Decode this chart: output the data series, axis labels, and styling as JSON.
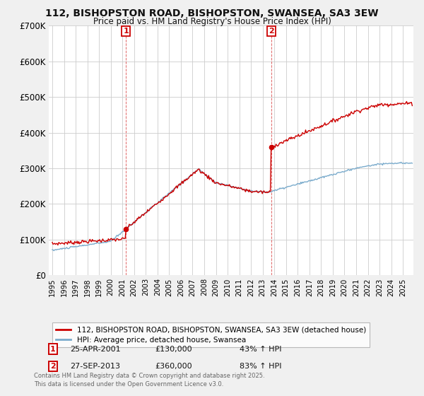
{
  "title": "112, BISHOPSTON ROAD, BISHOPSTON, SWANSEA, SA3 3EW",
  "subtitle": "Price paid vs. HM Land Registry's House Price Index (HPI)",
  "legend_line1": "112, BISHOPSTON ROAD, BISHOPSTON, SWANSEA, SA3 3EW (detached house)",
  "legend_line2": "HPI: Average price, detached house, Swansea",
  "annotation1_date": "25-APR-2001",
  "annotation1_price": "£130,000",
  "annotation1_hpi": "43% ↑ HPI",
  "annotation2_date": "27-SEP-2013",
  "annotation2_price": "£360,000",
  "annotation2_hpi": "83% ↑ HPI",
  "footnote": "Contains HM Land Registry data © Crown copyright and database right 2025.\nThis data is licensed under the Open Government Licence v3.0.",
  "ylim": [
    0,
    700000
  ],
  "yticks": [
    0,
    100000,
    200000,
    300000,
    400000,
    500000,
    600000,
    700000
  ],
  "ytick_labels": [
    "£0",
    "£100K",
    "£200K",
    "£300K",
    "£400K",
    "£500K",
    "£600K",
    "£700K"
  ],
  "red_color": "#cc0000",
  "blue_color": "#7aabcc",
  "background_color": "#f0f0f0",
  "plot_bg_color": "#ffffff",
  "grid_color": "#cccccc",
  "sale1_x": 2001.31,
  "sale1_y": 130000,
  "sale2_x": 2013.74,
  "sale2_y": 360000,
  "xlim_left": 1994.7,
  "xlim_right": 2025.9
}
